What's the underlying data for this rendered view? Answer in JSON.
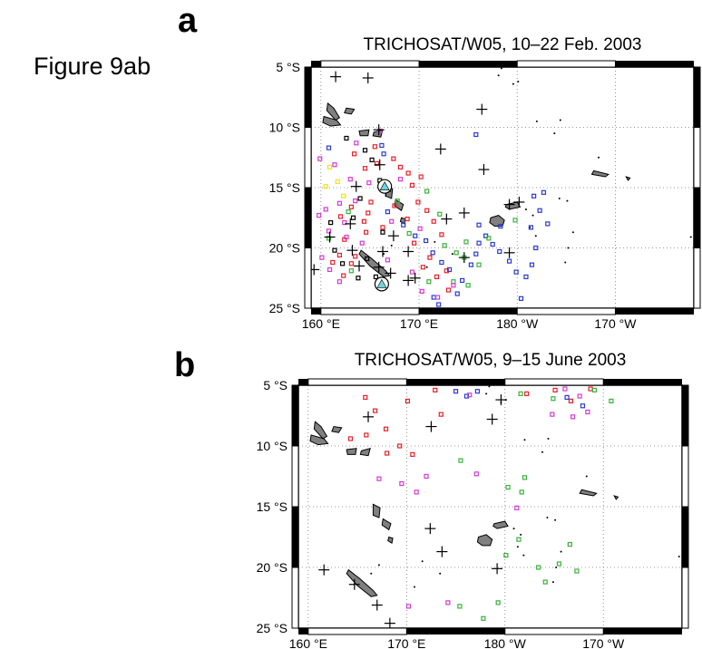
{
  "figure_label": "Figure 9ab",
  "colors": {
    "red": "#e8202a",
    "blue": "#2a3bd0",
    "green": "#39b13a",
    "magenta": "#d33bd1",
    "yellow": "#f2e21c",
    "black": "#000000",
    "cyan": "#6fd3e0",
    "land": "#808080"
  },
  "chart_data": [
    {
      "type": "scatter",
      "panel": "a",
      "title": "TRICHOSAT/W05, 10–22 Feb. 2003",
      "xlim": [
        159,
        198
      ],
      "ylim": [
        -25,
        -5
      ],
      "grid": true,
      "xticks": [
        160,
        170,
        180,
        190,
        199
      ],
      "xtick_labels": [
        "160 °E",
        "170 °E",
        "180 °W",
        "170 °W"
      ],
      "yticks": [
        -5,
        -10,
        -15,
        -20,
        -25
      ],
      "ytick_labels": [
        "5 °S",
        "10 °S",
        "15 °S",
        "20 °S",
        "25 °S"
      ],
      "crosses": [
        [
          161.5,
          -5.8
        ],
        [
          164.8,
          -5.9
        ],
        [
          176.4,
          -8.5
        ],
        [
          172.2,
          -11.8
        ],
        [
          176.6,
          -13.5
        ],
        [
          165.9,
          -10.2
        ],
        [
          166.0,
          -13.1
        ],
        [
          163.6,
          -14.9
        ],
        [
          166.6,
          -15.3
        ],
        [
          174.6,
          -17.1
        ],
        [
          179.2,
          -16.4
        ],
        [
          180.2,
          -16.2
        ],
        [
          172.8,
          -17.6
        ],
        [
          163.0,
          -18.0
        ],
        [
          167.4,
          -19.0
        ],
        [
          160.9,
          -19.1
        ],
        [
          163.2,
          -20.2
        ],
        [
          166.3,
          -20.3
        ],
        [
          168.9,
          -20.3
        ],
        [
          179.2,
          -20.4
        ],
        [
          174.6,
          -20.8
        ],
        [
          159.3,
          -21.8
        ],
        [
          163.9,
          -21.5
        ],
        [
          165.9,
          -21.6
        ],
        [
          167.1,
          -22.1
        ],
        [
          168.9,
          -22.7
        ],
        [
          169.6,
          -22.5
        ]
      ],
      "stations": [
        [
          166.5,
          -14.9
        ],
        [
          166.2,
          -23.0
        ]
      ],
      "points": {
        "red": [
          [
            163.4,
            -12.2
          ],
          [
            164.5,
            -13.4
          ],
          [
            165.7,
            -13.0
          ],
          [
            167.4,
            -12.6
          ],
          [
            168.1,
            -13.3
          ],
          [
            168.9,
            -13.8
          ],
          [
            169.3,
            -14.8
          ],
          [
            170.2,
            -14.1
          ],
          [
            169.9,
            -16.2
          ],
          [
            170.8,
            -16.9
          ],
          [
            168.8,
            -17.6
          ],
          [
            171.5,
            -17.8
          ],
          [
            172.3,
            -18.9
          ],
          [
            172.8,
            -21.9
          ],
          [
            171.8,
            -22.4
          ],
          [
            173.0,
            -23.5
          ],
          [
            165.1,
            -16.2
          ],
          [
            164.8,
            -17.1
          ],
          [
            163.1,
            -16.6
          ],
          [
            164.6,
            -18.7
          ],
          [
            162.4,
            -19.3
          ],
          [
            161.9,
            -20.6
          ],
          [
            161.2,
            -21.2
          ],
          [
            163.5,
            -20.7
          ],
          [
            164.4,
            -17.8
          ],
          [
            166.3,
            -18.3
          ],
          [
            167.5,
            -16.5
          ],
          [
            162.0,
            -17.4
          ],
          [
            162.3,
            -22.3
          ],
          [
            163.1,
            -21.3
          ],
          [
            170.4,
            -21.6
          ],
          [
            171.1,
            -20.8
          ],
          [
            165.5,
            -11.6
          ],
          [
            169.5,
            -19.6
          ]
        ],
        "blue": [
          [
            166.2,
            -11.5
          ],
          [
            166.4,
            -12.2
          ],
          [
            160.8,
            -11.7
          ],
          [
            166.8,
            -17.0
          ],
          [
            168.4,
            -18.1
          ],
          [
            169.6,
            -19.0
          ],
          [
            170.7,
            -19.4
          ],
          [
            171.4,
            -20.4
          ],
          [
            172.3,
            -21.2
          ],
          [
            173.1,
            -21.8
          ],
          [
            174.4,
            -22.7
          ],
          [
            175.3,
            -21.4
          ],
          [
            175.8,
            -20.5
          ],
          [
            176.1,
            -19.6
          ],
          [
            176.8,
            -19.0
          ],
          [
            177.5,
            -19.7
          ],
          [
            178.2,
            -20.3
          ],
          [
            179.2,
            -21.1
          ],
          [
            179.9,
            -22.0
          ],
          [
            180.9,
            -22.4
          ],
          [
            181.5,
            -21.4
          ],
          [
            181.9,
            -20.0
          ],
          [
            181.4,
            -18.3
          ],
          [
            182.3,
            -16.9
          ],
          [
            182.7,
            -15.4
          ],
          [
            181.7,
            -15.7
          ],
          [
            175.8,
            -10.6
          ],
          [
            171.5,
            -24.1
          ],
          [
            172.0,
            -24.7
          ],
          [
            173.9,
            -23.8
          ],
          [
            180.4,
            -24.2
          ],
          [
            178.3,
            -18.2
          ],
          [
            183.1,
            -18.0
          ],
          [
            176.1,
            -18.1
          ]
        ],
        "green": [
          [
            167.8,
            -16.1
          ],
          [
            170.8,
            -15.3
          ],
          [
            172.1,
            -17.2
          ],
          [
            172.6,
            -19.8
          ],
          [
            173.8,
            -20.4
          ],
          [
            174.8,
            -19.5
          ],
          [
            177.1,
            -19.2
          ],
          [
            179.8,
            -17.7
          ],
          [
            176.1,
            -21.4
          ],
          [
            175.0,
            -23.1
          ],
          [
            173.5,
            -22.8
          ],
          [
            163.1,
            -21.9
          ],
          [
            162.8,
            -17.0
          ],
          [
            160.8,
            -19.2
          ],
          [
            169.0,
            -18.8
          ],
          [
            171.0,
            -22.8
          ],
          [
            174.6,
            -20.8
          ]
        ],
        "magenta": [
          [
            159.9,
            -12.6
          ],
          [
            161.4,
            -13.1
          ],
          [
            160.5,
            -16.8
          ],
          [
            161.9,
            -16.3
          ],
          [
            162.4,
            -17.9
          ],
          [
            160.8,
            -18.6
          ],
          [
            163.5,
            -16.1
          ],
          [
            164.2,
            -19.6
          ],
          [
            160.1,
            -20.8
          ],
          [
            160.9,
            -21.8
          ],
          [
            161.9,
            -22.8
          ],
          [
            162.6,
            -19.1
          ],
          [
            167.2,
            -17.8
          ],
          [
            168.1,
            -14.3
          ],
          [
            163.6,
            -11.3
          ],
          [
            166.8,
            -21.0
          ],
          [
            170.3,
            -23.6
          ],
          [
            171.9,
            -24.1
          ],
          [
            173.5,
            -23.1
          ],
          [
            169.3,
            -22.0
          ],
          [
            164.9,
            -14.6
          ],
          [
            166.0,
            -10.3
          ],
          [
            163.0,
            -14.3
          ],
          [
            159.8,
            -17.3
          ],
          [
            170.1,
            -18.4
          ]
        ],
        "yellow": [
          [
            160.9,
            -13.3
          ],
          [
            161.7,
            -14.5
          ],
          [
            162.3,
            -15.7
          ],
          [
            160.5,
            -14.9
          ]
        ],
        "black": [
          [
            164.5,
            -11.9
          ],
          [
            162.6,
            -10.9
          ],
          [
            165.2,
            -12.7
          ],
          [
            166.0,
            -14.4
          ],
          [
            164.0,
            -15.9
          ],
          [
            163.3,
            -17.5
          ],
          [
            161.0,
            -17.9
          ],
          [
            164.7,
            -20.9
          ],
          [
            163.8,
            -22.5
          ],
          [
            166.3,
            -18.7
          ],
          [
            165.6,
            -22.4
          ],
          [
            162.2,
            -21.3
          ],
          [
            161.4,
            -20.2
          ]
        ]
      }
    },
    {
      "type": "scatter",
      "panel": "b",
      "title": "TRICHOSAT/W05, 9–15 June 2003",
      "xlim": [
        159,
        198
      ],
      "ylim": [
        -25,
        -5
      ],
      "grid": true,
      "xticks": [
        160,
        170,
        180,
        190,
        199
      ],
      "xtick_labels": [
        "160 °E",
        "170 °E",
        "180 °W",
        "170 °W"
      ],
      "yticks": [
        -5,
        -10,
        -15,
        -20,
        -25
      ],
      "ytick_labels": [
        "5 °S",
        "10 °S",
        "15 °S",
        "20 °S",
        "25 °S"
      ],
      "crosses": [
        [
          172.5,
          -8.4
        ],
        [
          178.7,
          -7.8
        ],
        [
          179.6,
          -6.2
        ],
        [
          166.1,
          -7.6
        ],
        [
          172.4,
          -16.8
        ],
        [
          173.6,
          -18.7
        ],
        [
          179.2,
          -20.1
        ],
        [
          164.7,
          -21.4
        ],
        [
          167.0,
          -23.1
        ],
        [
          168.3,
          -24.6
        ],
        [
          161.6,
          -20.2
        ]
      ],
      "stations": [],
      "points": {
        "red": [
          [
            165.8,
            -6.0
          ],
          [
            170.1,
            -6.3
          ],
          [
            166.8,
            -7.1
          ],
          [
            167.9,
            -8.6
          ],
          [
            165.9,
            -9.1
          ],
          [
            164.3,
            -9.4
          ],
          [
            169.3,
            -10.0
          ],
          [
            168.0,
            -10.6
          ],
          [
            170.6,
            -10.7
          ],
          [
            173.5,
            -7.4
          ],
          [
            185.1,
            -5.4
          ],
          [
            188.7,
            -5.3
          ],
          [
            186.7,
            -6.3
          ],
          [
            182.2,
            -5.7
          ],
          [
            172.9,
            -5.4
          ]
        ],
        "blue": [
          [
            175.0,
            -5.5
          ],
          [
            176.1,
            -5.9
          ],
          [
            177.2,
            -5.5
          ],
          [
            186.3,
            -6.0
          ],
          [
            187.9,
            -6.7
          ]
        ],
        "green": [
          [
            181.6,
            -5.7
          ],
          [
            184.9,
            -6.1
          ],
          [
            189.1,
            -5.4
          ],
          [
            190.8,
            -6.3
          ],
          [
            182.0,
            -12.6
          ],
          [
            180.3,
            -13.4
          ],
          [
            181.7,
            -13.8
          ],
          [
            183.4,
            -20.0
          ],
          [
            185.5,
            -19.7
          ],
          [
            187.3,
            -20.3
          ],
          [
            184.1,
            -21.2
          ],
          [
            180.1,
            -19.0
          ],
          [
            186.6,
            -18.1
          ],
          [
            181.4,
            -17.7
          ],
          [
            175.4,
            -23.2
          ],
          [
            177.8,
            -24.2
          ],
          [
            179.3,
            -22.9
          ],
          [
            175.5,
            -11.2
          ]
        ],
        "magenta": [
          [
            176.4,
            -5.8
          ],
          [
            186.1,
            -5.3
          ],
          [
            187.6,
            -5.9
          ],
          [
            188.4,
            -7.2
          ],
          [
            186.9,
            -7.6
          ],
          [
            184.8,
            -7.4
          ],
          [
            169.5,
            -13.1
          ],
          [
            171.0,
            -13.8
          ],
          [
            177.1,
            -12.3
          ],
          [
            172.0,
            -12.5
          ],
          [
            181.2,
            -15.1
          ],
          [
            170.2,
            -23.2
          ],
          [
            174.2,
            -22.9
          ],
          [
            167.2,
            -12.7
          ]
        ],
        "yellow": [],
        "black": []
      }
    }
  ]
}
